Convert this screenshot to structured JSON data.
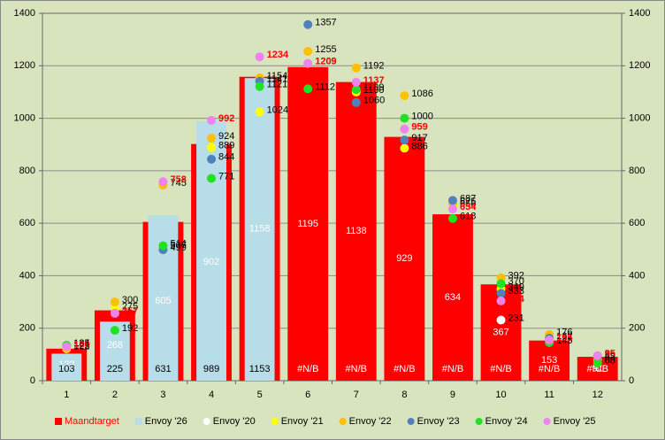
{
  "chart_data": {
    "type": "bar",
    "categories": [
      "1",
      "2",
      "3",
      "4",
      "5",
      "6",
      "7",
      "8",
      "9",
      "10",
      "11",
      "12"
    ],
    "ylim": [
      0,
      1400
    ],
    "yticks": [
      0,
      200,
      400,
      600,
      800,
      1000,
      1200,
      1400
    ],
    "y2lim": [
      0,
      1400
    ],
    "y2ticks": [
      0,
      200,
      400,
      600,
      800,
      1000,
      1200,
      1400
    ],
    "grid": true,
    "legend": "bottom",
    "series": [
      {
        "name": "Maandtarget",
        "color": "#ff0000",
        "kind": "bar",
        "values": [
          122,
          268,
          605,
          902,
          1158,
          1195,
          1138,
          929,
          634,
          367,
          153,
          91
        ]
      },
      {
        "name": "Envoy '26",
        "color": "#b7dde8",
        "kind": "bar",
        "values": [
          103,
          225,
          631,
          989,
          1153,
          null,
          null,
          null,
          null,
          null,
          null,
          null
        ],
        "value_labels": [
          "103",
          "225",
          "631",
          "989",
          "1153",
          "#N/B",
          "#N/B",
          "#N/B",
          "#N/B",
          "#N/B",
          "#N/B",
          "#N/B"
        ]
      },
      {
        "name": "Envoy '20",
        "color": "#ffffff",
        "kind": "point",
        "values": [
          null,
          null,
          null,
          null,
          null,
          null,
          null,
          null,
          null,
          231,
          null,
          null
        ]
      },
      {
        "name": "Envoy '21",
        "color": "#ffff00",
        "kind": "point",
        "values": [
          122,
          275,
          507,
          889,
          1024,
          1209,
          1100,
          886,
          666,
          349,
          157,
          82
        ]
      },
      {
        "name": "Envoy '22",
        "color": "#ffc000",
        "kind": "point",
        "values": [
          125,
          300,
          745,
          924,
          1154,
          1255,
          1192,
          1086,
          675,
          392,
          176,
          95
        ]
      },
      {
        "name": "Envoy '23",
        "color": "#4f81bd",
        "kind": "point",
        "values": [
          134,
          257,
          499,
          844,
          1141,
          1357,
          1060,
          917,
          687,
          333,
          162,
          89
        ]
      },
      {
        "name": "Envoy '24",
        "color": "#22e022",
        "kind": "point",
        "values": [
          135,
          192,
          514,
          771,
          1121,
          1112,
          1109,
          1000,
          618,
          370,
          145,
          68
        ]
      },
      {
        "name": "Envoy '25",
        "color": "#ee82ee",
        "kind": "point",
        "values": [
          130,
          257,
          758,
          992,
          1234,
          1209,
          1137,
          959,
          654,
          304,
          155,
          95
        ]
      }
    ]
  }
}
